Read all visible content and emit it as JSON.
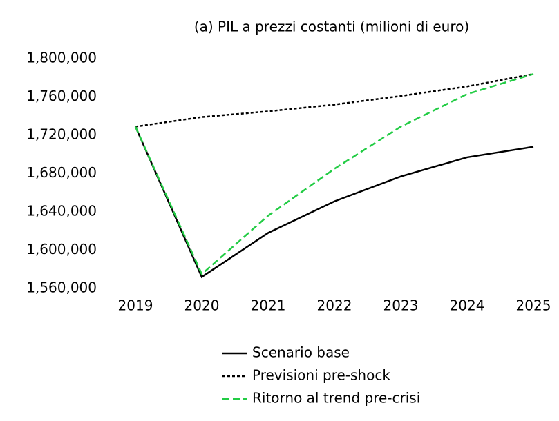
{
  "chart_data": {
    "type": "line",
    "title": "(a) PIL a prezzi costanti (milioni di euro)",
    "categories": [
      "2019",
      "2020",
      "2021",
      "2022",
      "2023",
      "2024",
      "2025"
    ],
    "series": [
      {
        "name": "Scenario base",
        "color": "#000000",
        "dash": "solid",
        "values": [
          1729000,
          1572000,
          1618000,
          1651000,
          1677000,
          1697000,
          1708000
        ]
      },
      {
        "name": "Previsioni pre-shock",
        "color": "#000000",
        "dash": "dotted",
        "values": [
          1729000,
          1739000,
          1745000,
          1752000,
          1761000,
          1771000,
          1784000
        ]
      },
      {
        "name": "Ritorno al trend pre-crisi",
        "color": "#22cc44",
        "dash": "dashed",
        "values": [
          1729000,
          1575000,
          1636000,
          1685000,
          1729000,
          1763000,
          1784000
        ]
      }
    ],
    "ylim": [
      1560000,
      1800000
    ],
    "yticks": [
      {
        "value": 1560000,
        "label": "1,560,000"
      },
      {
        "value": 1600000,
        "label": "1,600,000"
      },
      {
        "value": 1640000,
        "label": "1,640,000"
      },
      {
        "value": 1680000,
        "label": "1,680,000"
      },
      {
        "value": 1720000,
        "label": "1,720,000"
      },
      {
        "value": 1760000,
        "label": "1,760,000"
      },
      {
        "value": 1800000,
        "label": "1,800,000"
      }
    ],
    "grid": false,
    "legend": "bottom"
  }
}
